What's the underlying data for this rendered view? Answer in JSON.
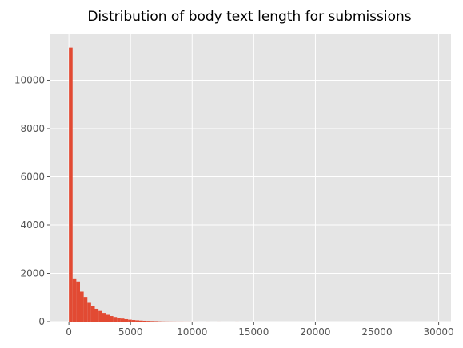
{
  "chart_data": {
    "type": "bar",
    "title": "Distribution of body text length for submissions",
    "xlabel": "",
    "ylabel": "",
    "xlim": [
      -1500,
      31000
    ],
    "ylim": [
      0,
      11900
    ],
    "bin_width": 300,
    "bins": [
      {
        "x0": 0,
        "x1": 300,
        "count": 11350
      },
      {
        "x0": 300,
        "x1": 600,
        "count": 1790
      },
      {
        "x0": 600,
        "x1": 900,
        "count": 1660
      },
      {
        "x0": 900,
        "x1": 1200,
        "count": 1240
      },
      {
        "x0": 1200,
        "x1": 1500,
        "count": 1020
      },
      {
        "x0": 1500,
        "x1": 1800,
        "count": 810
      },
      {
        "x0": 1800,
        "x1": 2100,
        "count": 660
      },
      {
        "x0": 2100,
        "x1": 2400,
        "count": 530
      },
      {
        "x0": 2400,
        "x1": 2700,
        "count": 440
      },
      {
        "x0": 2700,
        "x1": 3000,
        "count": 360
      },
      {
        "x0": 3000,
        "x1": 3300,
        "count": 280
      },
      {
        "x0": 3300,
        "x1": 3600,
        "count": 230
      },
      {
        "x0": 3600,
        "x1": 3900,
        "count": 190
      },
      {
        "x0": 3900,
        "x1": 4200,
        "count": 155
      },
      {
        "x0": 4200,
        "x1": 4500,
        "count": 125
      },
      {
        "x0": 4500,
        "x1": 4800,
        "count": 100
      },
      {
        "x0": 4800,
        "x1": 5100,
        "count": 80
      },
      {
        "x0": 5100,
        "x1": 5400,
        "count": 65
      },
      {
        "x0": 5400,
        "x1": 5700,
        "count": 52
      },
      {
        "x0": 5700,
        "x1": 6000,
        "count": 42
      },
      {
        "x0": 6000,
        "x1": 6300,
        "count": 34
      },
      {
        "x0": 6300,
        "x1": 6600,
        "count": 28
      },
      {
        "x0": 6600,
        "x1": 6900,
        "count": 22
      },
      {
        "x0": 6900,
        "x1": 7200,
        "count": 18
      },
      {
        "x0": 7200,
        "x1": 7500,
        "count": 12
      },
      {
        "x0": 7500,
        "x1": 7800,
        "count": 8
      },
      {
        "x0": 7800,
        "x1": 8100,
        "count": 6
      },
      {
        "x0": 8100,
        "x1": 8400,
        "count": 5
      },
      {
        "x0": 8400,
        "x1": 8700,
        "count": 4
      },
      {
        "x0": 8700,
        "x1": 9000,
        "count": 3
      },
      {
        "x0": 9000,
        "x1": 9300,
        "count": 3
      },
      {
        "x0": 9300,
        "x1": 9600,
        "count": 2
      },
      {
        "x0": 9600,
        "x1": 9900,
        "count": 2
      },
      {
        "x0": 9900,
        "x1": 10200,
        "count": 1
      },
      {
        "x0": 10200,
        "x1": 10500,
        "count": 1
      },
      {
        "x0": 11100,
        "x1": 11400,
        "count": 1
      },
      {
        "x0": 12000,
        "x1": 12300,
        "count": 1
      },
      {
        "x0": 13500,
        "x1": 13800,
        "count": 1
      },
      {
        "x0": 29700,
        "x1": 30000,
        "count": 1
      }
    ],
    "xticks": [
      0,
      5000,
      10000,
      15000,
      20000,
      25000,
      30000
    ],
    "yticks": [
      0,
      2000,
      4000,
      6000,
      8000,
      10000
    ],
    "grid": true,
    "colors": {
      "bar": "#e24a33",
      "plot_background": "#e5e5e5",
      "grid": "#ffffff",
      "tick_label": "#555555"
    }
  }
}
